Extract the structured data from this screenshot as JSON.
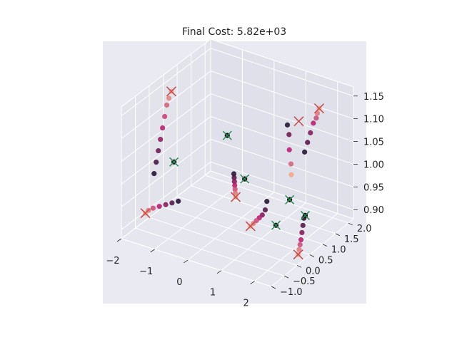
{
  "chart_data": {
    "type": "scatter",
    "projection": "3d",
    "title": "Final Cost: 5.82e+03",
    "xlabel": "",
    "ylabel": "",
    "zlabel": "",
    "xlim": [
      -2,
      2.5
    ],
    "ylim": [
      -1,
      2.2
    ],
    "zlim": [
      0.88,
      1.17
    ],
    "x_ticks": [
      "−2",
      "−1",
      "0",
      "1",
      "2"
    ],
    "y_ticks": [
      "−1.0",
      "−0.5",
      "0.0",
      "0.5",
      "1.0",
      "1.5",
      "2.0"
    ],
    "z_ticks": [
      "0.90",
      "0.95",
      "1.00",
      "1.05",
      "1.10",
      "1.15"
    ],
    "grid": true,
    "pane_color": "#eaeaf2",
    "background": "#ffffff",
    "colors": {
      "final_marker": "#c44e52",
      "initial_marker": "#2e8b57",
      "trajectory_start": "#1a0a2a",
      "trajectory_end": "#f4a582"
    },
    "series": [
      {
        "marker": "trajectory",
        "points": [
          [
            -1.6,
            -0.3,
            1.0
          ],
          [
            -1.62,
            -0.2,
            1.02
          ],
          [
            -1.64,
            -0.1,
            1.04
          ],
          [
            -1.66,
            0.0,
            1.06
          ],
          [
            -1.68,
            0.1,
            1.08
          ],
          [
            -1.7,
            0.2,
            1.1
          ],
          [
            -1.72,
            0.3,
            1.12
          ],
          [
            -1.74,
            0.4,
            1.13
          ],
          [
            -1.75,
            0.5,
            1.14
          ]
        ]
      },
      {
        "marker": "trajectory",
        "points": [
          [
            -1.2,
            0.1,
            0.93
          ],
          [
            -1.35,
            0.05,
            0.925
          ],
          [
            -1.5,
            0.0,
            0.92
          ],
          [
            -1.65,
            -0.05,
            0.915
          ],
          [
            -1.8,
            -0.1,
            0.91
          ],
          [
            -1.9,
            -0.15,
            0.905
          ],
          [
            -1.95,
            -0.2,
            0.9
          ]
        ]
      },
      {
        "marker": "trajectory",
        "points": [
          [
            0.25,
            0.4,
            1.01
          ],
          [
            0.3,
            0.35,
            1.005
          ],
          [
            0.35,
            0.3,
            1.0
          ],
          [
            0.4,
            0.25,
            0.995
          ],
          [
            0.45,
            0.2,
            0.99
          ],
          [
            0.5,
            0.15,
            0.985
          ],
          [
            0.55,
            0.1,
            0.98
          ]
        ]
      },
      {
        "marker": "trajectory",
        "points": [
          [
            1.1,
            0.6,
            0.96
          ],
          [
            1.05,
            0.6,
            0.94
          ],
          [
            1.0,
            0.55,
            0.93
          ],
          [
            0.95,
            0.5,
            0.925
          ],
          [
            0.9,
            0.45,
            0.92
          ],
          [
            0.85,
            0.4,
            0.915
          ],
          [
            0.8,
            0.35,
            0.91
          ]
        ]
      },
      {
        "marker": "trajectory",
        "points": [
          [
            1.7,
            1.3,
            1.05
          ],
          [
            1.75,
            1.35,
            1.07
          ],
          [
            1.8,
            1.4,
            1.09
          ],
          [
            1.85,
            1.45,
            1.11
          ],
          [
            1.9,
            1.5,
            1.12
          ],
          [
            1.92,
            1.52,
            1.13
          ],
          [
            1.95,
            1.55,
            1.14
          ]
        ]
      },
      {
        "marker": "trajectory",
        "points": [
          [
            2.0,
            0.9,
            0.93
          ],
          [
            2.05,
            0.8,
            0.92
          ],
          [
            2.1,
            0.7,
            0.91
          ],
          [
            2.15,
            0.6,
            0.9
          ],
          [
            2.2,
            0.5,
            0.895
          ],
          [
            2.25,
            0.4,
            0.89
          ],
          [
            2.3,
            0.3,
            0.885
          ]
        ]
      },
      {
        "marker": "trajectory",
        "points": [
          [
            1.45,
            0.95,
            1.12
          ],
          [
            1.5,
            0.95,
            1.1
          ],
          [
            1.55,
            0.9,
            1.07
          ],
          [
            1.6,
            0.9,
            1.04
          ],
          [
            1.65,
            0.85,
            1.02
          ]
        ]
      },
      {
        "marker": "initial",
        "points": [
          [
            -1.5,
            0.3,
            1.0
          ],
          [
            -0.2,
            0.7,
            1.07
          ],
          [
            0.5,
            0.5,
            1.0
          ],
          [
            1.8,
            0.6,
            0.98
          ],
          [
            1.7,
            0.2,
            0.94
          ],
          [
            2.2,
            0.7,
            0.95
          ]
        ]
      },
      {
        "marker": "final",
        "points": [
          [
            -1.75,
            0.5,
            1.14
          ],
          [
            -1.95,
            -0.2,
            0.9
          ],
          [
            0.55,
            0.1,
            0.98
          ],
          [
            0.8,
            0.35,
            0.91
          ],
          [
            1.95,
            1.55,
            1.14
          ],
          [
            1.6,
            1.2,
            1.12
          ],
          [
            2.3,
            0.3,
            0.885
          ]
        ]
      }
    ]
  }
}
